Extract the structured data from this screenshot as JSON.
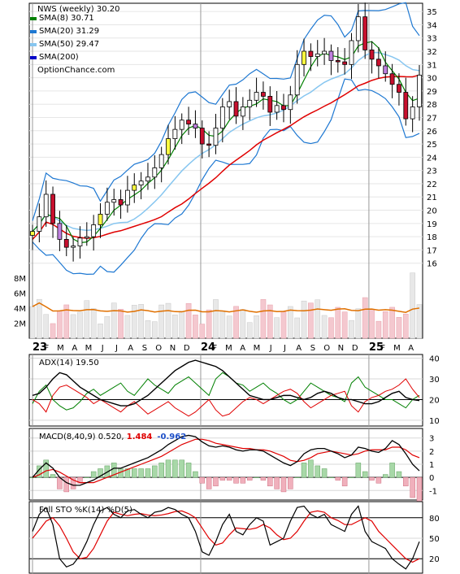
{
  "chart_data": {
    "type": "line",
    "symbol_title": "NWS (weekly) 30.20",
    "brand": "OptionChance.com",
    "x_labels": [
      {
        "text": "23",
        "bold": true
      },
      {
        "text": "F"
      },
      {
        "text": "M"
      },
      {
        "text": "A"
      },
      {
        "text": "M"
      },
      {
        "text": "J"
      },
      {
        "text": "J"
      },
      {
        "text": "A"
      },
      {
        "text": "S"
      },
      {
        "text": "O"
      },
      {
        "text": "N"
      },
      {
        "text": "D"
      },
      {
        "text": "24",
        "bold": true
      },
      {
        "text": "F"
      },
      {
        "text": "M"
      },
      {
        "text": "A"
      },
      {
        "text": "M"
      },
      {
        "text": "J"
      },
      {
        "text": "J"
      },
      {
        "text": "A"
      },
      {
        "text": "S"
      },
      {
        "text": "O"
      },
      {
        "text": "N"
      },
      {
        "text": "D"
      },
      {
        "text": "25",
        "bold": true
      },
      {
        "text": "F"
      },
      {
        "text": "M"
      },
      {
        "text": "A"
      }
    ],
    "price_panel": {
      "ylim": [
        15,
        35.5
      ],
      "y_ticks": [
        16,
        17,
        18,
        19,
        20,
        21,
        22,
        23,
        24,
        25,
        26,
        27,
        28,
        29,
        30,
        31,
        32,
        33,
        34,
        35
      ],
      "legend": [
        {
          "name": "SMA(8) 30.71",
          "color": "#008000"
        },
        {
          "name": "SMA(20) 31.29",
          "color": "#1e78d2"
        },
        {
          "name": "SMA(50) 29.47",
          "color": "#87c6f0"
        },
        {
          "name": "SMA(200)",
          "color": "#0000c8"
        }
      ],
      "close": [
        18.4,
        19.5,
        21.2,
        19.0,
        17.8,
        17.2,
        17.3,
        17.9,
        18.0,
        18.9,
        19.7,
        20.6,
        20.8,
        20.4,
        21.5,
        21.9,
        22.2,
        22.5,
        23.2,
        24.2,
        25.4,
        26.1,
        26.8,
        26.5,
        26.2,
        25.0,
        24.9,
        26.2,
        27.8,
        28.2,
        27.1,
        27.8,
        28.3,
        28.9,
        28.6,
        27.4,
        27.9,
        27.6,
        28.7,
        31.0,
        32.0,
        31.6,
        31.8,
        32.0,
        31.3,
        31.2,
        31.0,
        32.8,
        34.6,
        32.1,
        31.4,
        30.9,
        30.3,
        29.5,
        28.9,
        26.9,
        27.8,
        30.2
      ],
      "bb_upper_extremes": [
        36.0
      ],
      "volume": {
        "ylim": [
          0,
          9.5
        ],
        "y_ticks": [
          {
            "v": 2,
            "label": "2M"
          },
          {
            "v": 4,
            "label": "4M"
          },
          {
            "v": 6,
            "label": "6M"
          },
          {
            "v": 8,
            "label": "8M"
          }
        ],
        "avg_color": "#e07000"
      }
    },
    "adx_panel": {
      "title": "ADX(14) 19.50",
      "ylim": [
        8,
        41
      ],
      "y_ticks": [
        10,
        20,
        30,
        40
      ],
      "adx": [
        22,
        23,
        26,
        30,
        33,
        32,
        29,
        26,
        24,
        22,
        20,
        19,
        18,
        17,
        17,
        18,
        20,
        22,
        25,
        28,
        31,
        34,
        36,
        38,
        39,
        38,
        37,
        36,
        34,
        31,
        28,
        25,
        22,
        21,
        20,
        20,
        21,
        22,
        22,
        21,
        20,
        21,
        23,
        24,
        23,
        21,
        20,
        20,
        19,
        18,
        18,
        19,
        21,
        23,
        24,
        21,
        20,
        19.5
      ],
      "plus_di": [
        18,
        24,
        27,
        20,
        17,
        15,
        16,
        19,
        23,
        25,
        22,
        24,
        26,
        28,
        24,
        22,
        26,
        30,
        27,
        25,
        23,
        27,
        29,
        31,
        28,
        25,
        22,
        30,
        33,
        31,
        28,
        27,
        24,
        26,
        28,
        25,
        23,
        20,
        18,
        20,
        24,
        28,
        26,
        24,
        22,
        21,
        19,
        28,
        31,
        26,
        24,
        22,
        20,
        20,
        18,
        16,
        20,
        22
      ],
      "minus_di": [
        20,
        18,
        14,
        22,
        26,
        27,
        25,
        23,
        21,
        18,
        20,
        18,
        16,
        14,
        17,
        19,
        16,
        13,
        15,
        17,
        19,
        16,
        14,
        12,
        14,
        17,
        20,
        15,
        12,
        13,
        16,
        19,
        21,
        20,
        18,
        20,
        22,
        24,
        25,
        23,
        19,
        16,
        18,
        20,
        22,
        23,
        24,
        17,
        14,
        19,
        21,
        22,
        24,
        25,
        27,
        30,
        25,
        21
      ]
    },
    "macd_panel": {
      "title": "MACD(8,40,9) 0.520, ",
      "value_red": "1.484",
      "value_blue": "-0.962",
      "ylim": [
        -1.6,
        3.6
      ],
      "y_ticks": [
        -1,
        0,
        1,
        2,
        3
      ],
      "macd": [
        0.0,
        0.6,
        1.1,
        0.7,
        0.0,
        -0.4,
        -0.6,
        -0.6,
        -0.4,
        -0.2,
        0.1,
        0.4,
        0.7,
        0.7,
        0.9,
        1.1,
        1.3,
        1.5,
        1.8,
        2.1,
        2.5,
        2.8,
        3.1,
        3.2,
        3.1,
        2.7,
        2.4,
        2.3,
        2.4,
        2.3,
        2.1,
        2.0,
        2.1,
        2.1,
        2.0,
        1.7,
        1.4,
        1.1,
        0.9,
        1.2,
        1.8,
        2.1,
        2.2,
        2.2,
        2.0,
        1.8,
        1.5,
        1.7,
        2.3,
        2.2,
        2.0,
        1.9,
        2.2,
        2.8,
        2.5,
        1.8,
        1.0,
        0.5
      ],
      "signal": [
        0.0,
        0.2,
        0.5,
        0.6,
        0.4,
        0.1,
        -0.2,
        -0.4,
        -0.4,
        -0.4,
        -0.2,
        0.0,
        0.2,
        0.4,
        0.6,
        0.8,
        1.0,
        1.2,
        1.4,
        1.6,
        1.9,
        2.2,
        2.5,
        2.7,
        2.9,
        2.9,
        2.8,
        2.6,
        2.5,
        2.4,
        2.3,
        2.2,
        2.2,
        2.1,
        2.1,
        2.0,
        1.8,
        1.6,
        1.3,
        1.2,
        1.3,
        1.5,
        1.8,
        1.9,
        2.0,
        1.9,
        1.8,
        1.7,
        1.8,
        2.0,
        2.1,
        2.1,
        2.1,
        2.3,
        2.3,
        2.1,
        1.7,
        1.5
      ]
    },
    "sto_panel": {
      "title": "Full STO %K(14) %D(5)",
      "ylim": [
        0,
        100
      ],
      "y_ticks": [
        20,
        50,
        80
      ],
      "k": [
        60,
        85,
        95,
        70,
        20,
        8,
        12,
        25,
        45,
        70,
        90,
        95,
        85,
        80,
        90,
        92,
        85,
        80,
        88,
        90,
        95,
        92,
        85,
        80,
        60,
        30,
        25,
        45,
        70,
        85,
        60,
        55,
        70,
        80,
        75,
        40,
        45,
        50,
        75,
        95,
        97,
        85,
        80,
        85,
        70,
        65,
        60,
        85,
        97,
        60,
        45,
        40,
        35,
        20,
        12,
        5,
        20,
        45
      ],
      "d": [
        50,
        62,
        75,
        80,
        68,
        50,
        30,
        20,
        22,
        35,
        55,
        75,
        88,
        85,
        83,
        85,
        86,
        84,
        83,
        84,
        86,
        89,
        90,
        86,
        80,
        65,
        50,
        40,
        43,
        55,
        65,
        64,
        63,
        65,
        70,
        65,
        55,
        48,
        50,
        60,
        75,
        88,
        90,
        88,
        80,
        76,
        70,
        70,
        75,
        80,
        75,
        60,
        50,
        40,
        30,
        20,
        15,
        20
      ]
    }
  }
}
